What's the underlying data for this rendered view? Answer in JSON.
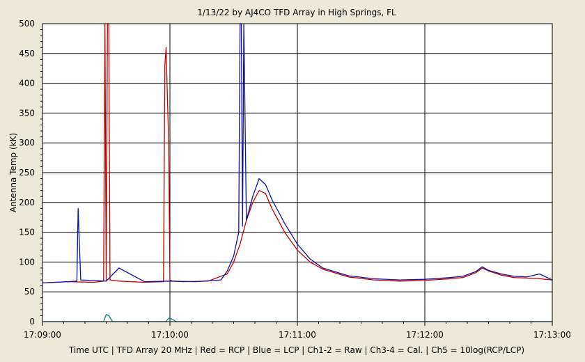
{
  "chart_data": {
    "type": "line",
    "title": "1/13/22  by  AJ4CO TFD Array  in  High Springs, FL",
    "xlabel": "Time UTC | TFD Array 20 MHz | Red = RCP | Blue = LCP | Ch1-2 = Raw | Ch3-4 = Cal. | Ch5 = 10log(RCP/LCP)",
    "ylabel": "Antenna Temp (kK)",
    "x_unit": "minutes after 17:09:00 UTC",
    "xlim": [
      0,
      4
    ],
    "ylim": [
      0,
      500
    ],
    "y_ticks": [
      0,
      50,
      100,
      150,
      200,
      250,
      300,
      350,
      400,
      450,
      500
    ],
    "x_tick_values": [
      0,
      1,
      2,
      3,
      4
    ],
    "x_tick_labels": [
      "17:09:00",
      "17:10:00",
      "17:11:00",
      "17:12:00",
      "17:13:00"
    ],
    "grid": true,
    "series": [
      {
        "name": "RCP",
        "color": "#c00000",
        "x": [
          0,
          0.2,
          0.4,
          0.48,
          0.49,
          0.5,
          0.51,
          0.52,
          0.53,
          0.6,
          0.8,
          0.95,
          0.96,
          0.97,
          0.98,
          0.99,
          1.0,
          1.02,
          1.1,
          1.3,
          1.45,
          1.5,
          1.55,
          1.6,
          1.65,
          1.7,
          1.75,
          1.8,
          1.9,
          2.0,
          2.1,
          2.2,
          2.4,
          2.6,
          2.8,
          3.0,
          3.2,
          3.3,
          3.4,
          3.45,
          3.5,
          3.6,
          3.7,
          3.8,
          3.9,
          4.0
        ],
        "y": [
          65,
          67,
          66,
          68,
          500,
          70,
          500,
          500,
          70,
          68,
          66,
          67,
          430,
          460,
          380,
          300,
          70,
          68,
          67,
          68,
          80,
          100,
          130,
          170,
          200,
          220,
          215,
          190,
          150,
          120,
          100,
          88,
          75,
          70,
          68,
          69,
          72,
          74,
          82,
          90,
          85,
          78,
          74,
          73,
          72,
          70
        ]
      },
      {
        "name": "LCP",
        "color": "#1010a8",
        "x": [
          0,
          0.2,
          0.27,
          0.28,
          0.3,
          0.5,
          0.6,
          0.8,
          1.0,
          1.2,
          1.4,
          1.45,
          1.5,
          1.54,
          1.55,
          1.56,
          1.57,
          1.58,
          1.6,
          1.65,
          1.7,
          1.75,
          1.8,
          1.9,
          2.0,
          2.1,
          2.2,
          2.4,
          2.6,
          2.8,
          3.0,
          3.2,
          3.3,
          3.4,
          3.45,
          3.5,
          3.6,
          3.7,
          3.8,
          3.9,
          4.0
        ],
        "y": [
          65,
          67,
          68,
          190,
          70,
          68,
          90,
          67,
          68,
          67,
          70,
          85,
          110,
          150,
          500,
          500,
          160,
          500,
          170,
          210,
          240,
          230,
          205,
          165,
          130,
          105,
          90,
          77,
          72,
          70,
          71,
          74,
          76,
          84,
          92,
          86,
          80,
          76,
          75,
          80,
          70
        ]
      },
      {
        "name": "Ch5",
        "color": "#008080",
        "x": [
          0,
          0.48,
          0.5,
          0.52,
          0.55,
          0.97,
          0.99,
          1.01,
          1.05,
          4.0
        ],
        "y": [
          0,
          0,
          12,
          10,
          0,
          0,
          6,
          5,
          0,
          0
        ]
      }
    ]
  }
}
